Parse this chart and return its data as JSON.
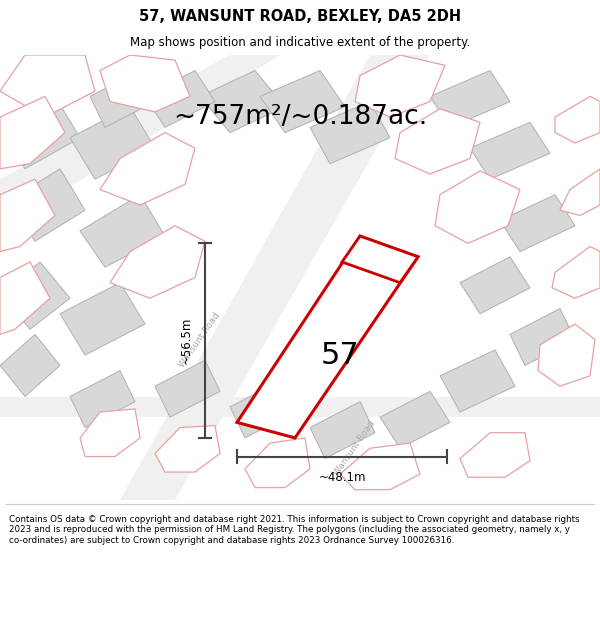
{
  "title_line1": "57, WANSUNT ROAD, BEXLEY, DA5 2DH",
  "title_line2": "Map shows position and indicative extent of the property.",
  "area_text": "~757m²/~0.187ac.",
  "label_number": "57",
  "dim_width": "~48.1m",
  "dim_height": "~56.5m",
  "footer_text": "Contains OS data © Crown copyright and database right 2021. This information is subject to Crown copyright and database rights 2023 and is reproduced with the permission of HM Land Registry. The polygons (including the associated geometry, namely x, y co-ordinates) are subject to Crown copyright and database rights 2023 Ordnance Survey 100026316.",
  "bg_color": "#ffffff",
  "map_bg": "#ffffff",
  "main_plot_color": "#cc0000",
  "gray_fill": "#d8d8d8",
  "gray_edge": "#b0b0b0",
  "pink_edge": "#e8a0a0",
  "pink_fill": "#ffffff",
  "dim_color": "#444444",
  "road_text_color": "#aaaaaa",
  "road_bg": "#eeeeee"
}
